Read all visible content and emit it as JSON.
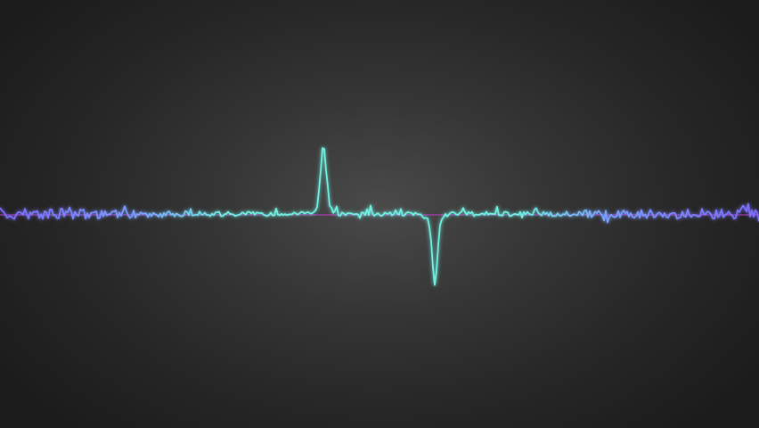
{
  "colors": {
    "background_center": "#4a4a4a",
    "background_edge": "#1c1c1c",
    "wave_cyan": "#6ff2e2",
    "wave_violet": "#7a6cff",
    "baseline_magenta": "#c23cc8"
  },
  "waveform": {
    "description_free": true,
    "peak_up_height_fraction": 0.28,
    "peak_down_depth_fraction": 0.29,
    "noise_level_fraction": 0.02
  }
}
